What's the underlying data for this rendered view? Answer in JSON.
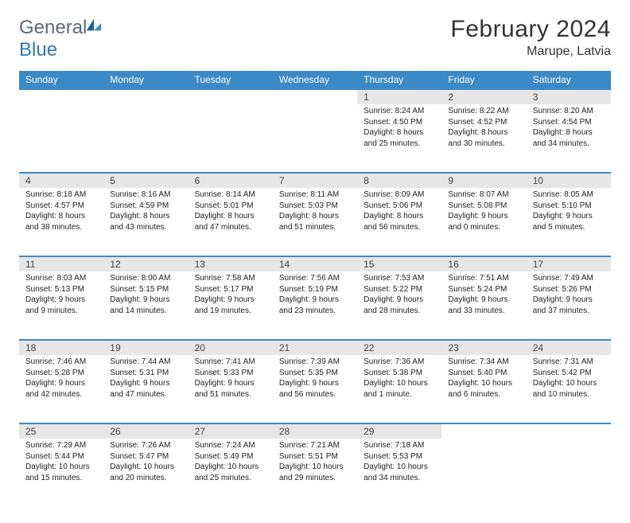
{
  "logo": {
    "part1": "General",
    "part2": "Blue"
  },
  "title": "February 2024",
  "location": "Marupe, Latvia",
  "colors": {
    "header_blue": "#3c8ac5",
    "daynum_bg": "#e6e6e6",
    "border_blue": "#3c8ac5",
    "logo_gray": "#5a6a78",
    "logo_blue": "#2b7ab8"
  },
  "dayHeaders": [
    "Sunday",
    "Monday",
    "Tuesday",
    "Wednesday",
    "Thursday",
    "Friday",
    "Saturday"
  ],
  "weeks": [
    [
      null,
      null,
      null,
      null,
      {
        "n": "1",
        "sr": "8:24 AM",
        "ss": "4:50 PM",
        "dl": "8 hours and 25 minutes."
      },
      {
        "n": "2",
        "sr": "8:22 AM",
        "ss": "4:52 PM",
        "dl": "8 hours and 30 minutes."
      },
      {
        "n": "3",
        "sr": "8:20 AM",
        "ss": "4:54 PM",
        "dl": "8 hours and 34 minutes."
      }
    ],
    [
      {
        "n": "4",
        "sr": "8:18 AM",
        "ss": "4:57 PM",
        "dl": "8 hours and 38 minutes."
      },
      {
        "n": "5",
        "sr": "8:16 AM",
        "ss": "4:59 PM",
        "dl": "8 hours and 43 minutes."
      },
      {
        "n": "6",
        "sr": "8:14 AM",
        "ss": "5:01 PM",
        "dl": "8 hours and 47 minutes."
      },
      {
        "n": "7",
        "sr": "8:11 AM",
        "ss": "5:03 PM",
        "dl": "8 hours and 51 minutes."
      },
      {
        "n": "8",
        "sr": "8:09 AM",
        "ss": "5:06 PM",
        "dl": "8 hours and 56 minutes."
      },
      {
        "n": "9",
        "sr": "8:07 AM",
        "ss": "5:08 PM",
        "dl": "9 hours and 0 minutes."
      },
      {
        "n": "10",
        "sr": "8:05 AM",
        "ss": "5:10 PM",
        "dl": "9 hours and 5 minutes."
      }
    ],
    [
      {
        "n": "11",
        "sr": "8:03 AM",
        "ss": "5:13 PM",
        "dl": "9 hours and 9 minutes."
      },
      {
        "n": "12",
        "sr": "8:00 AM",
        "ss": "5:15 PM",
        "dl": "9 hours and 14 minutes."
      },
      {
        "n": "13",
        "sr": "7:58 AM",
        "ss": "5:17 PM",
        "dl": "9 hours and 19 minutes."
      },
      {
        "n": "14",
        "sr": "7:56 AM",
        "ss": "5:19 PM",
        "dl": "9 hours and 23 minutes."
      },
      {
        "n": "15",
        "sr": "7:53 AM",
        "ss": "5:22 PM",
        "dl": "9 hours and 28 minutes."
      },
      {
        "n": "16",
        "sr": "7:51 AM",
        "ss": "5:24 PM",
        "dl": "9 hours and 33 minutes."
      },
      {
        "n": "17",
        "sr": "7:49 AM",
        "ss": "5:26 PM",
        "dl": "9 hours and 37 minutes."
      }
    ],
    [
      {
        "n": "18",
        "sr": "7:46 AM",
        "ss": "5:28 PM",
        "dl": "9 hours and 42 minutes."
      },
      {
        "n": "19",
        "sr": "7:44 AM",
        "ss": "5:31 PM",
        "dl": "9 hours and 47 minutes."
      },
      {
        "n": "20",
        "sr": "7:41 AM",
        "ss": "5:33 PM",
        "dl": "9 hours and 51 minutes."
      },
      {
        "n": "21",
        "sr": "7:39 AM",
        "ss": "5:35 PM",
        "dl": "9 hours and 56 minutes."
      },
      {
        "n": "22",
        "sr": "7:36 AM",
        "ss": "5:38 PM",
        "dl": "10 hours and 1 minute."
      },
      {
        "n": "23",
        "sr": "7:34 AM",
        "ss": "5:40 PM",
        "dl": "10 hours and 6 minutes."
      },
      {
        "n": "24",
        "sr": "7:31 AM",
        "ss": "5:42 PM",
        "dl": "10 hours and 10 minutes."
      }
    ],
    [
      {
        "n": "25",
        "sr": "7:29 AM",
        "ss": "5:44 PM",
        "dl": "10 hours and 15 minutes."
      },
      {
        "n": "26",
        "sr": "7:26 AM",
        "ss": "5:47 PM",
        "dl": "10 hours and 20 minutes."
      },
      {
        "n": "27",
        "sr": "7:24 AM",
        "ss": "5:49 PM",
        "dl": "10 hours and 25 minutes."
      },
      {
        "n": "28",
        "sr": "7:21 AM",
        "ss": "5:51 PM",
        "dl": "10 hours and 29 minutes."
      },
      {
        "n": "29",
        "sr": "7:18 AM",
        "ss": "5:53 PM",
        "dl": "10 hours and 34 minutes."
      },
      null,
      null
    ]
  ],
  "labels": {
    "sunrise": "Sunrise:",
    "sunset": "Sunset:",
    "daylight": "Daylight:"
  }
}
